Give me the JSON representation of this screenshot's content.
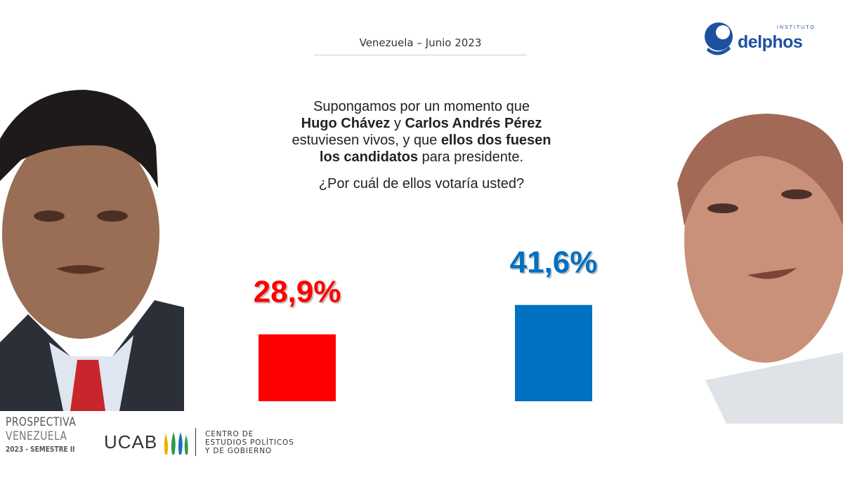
{
  "header": {
    "title": "Venezuela  –  Junio 2023"
  },
  "logo": {
    "instituto": "INSTITUTO",
    "name": "delphos"
  },
  "question": {
    "line1": "Supongamos por un momento que",
    "name1": "Hugo Chávez",
    "connector": " y ",
    "name2": "Carlos Andrés Pérez",
    "line3_start": "estuviesen vivos, y que ",
    "line3_bold": "ellos dos fuesen",
    "line4_bold": "los candidatos",
    "line4_end": " para presidente.",
    "question": "¿Por cuál de ellos votaría usted?"
  },
  "chart_data": {
    "type": "bar",
    "categories": [
      "",
      ""
    ],
    "values": [
      28.9,
      41.6
    ],
    "value_labels": [
      "28,9%",
      "41,6%"
    ],
    "colors": [
      "#ff0000",
      "#0070c0"
    ],
    "title": "",
    "xlabel": "",
    "ylabel": "",
    "grid": false
  },
  "photos": {
    "left": "person-photo",
    "right": "person-photo"
  },
  "footer": {
    "prospectiva_1": "PROSPECTIVA",
    "prospectiva_2": "VENEZUELA",
    "prospectiva_3": "2023 - SEMESTRE II",
    "ucab": "UCAB",
    "centro_1": "CENTRO DE",
    "centro_2": "ESTUDIOS POLÍTICOS",
    "centro_3": "Y DE GOBIERNO"
  }
}
